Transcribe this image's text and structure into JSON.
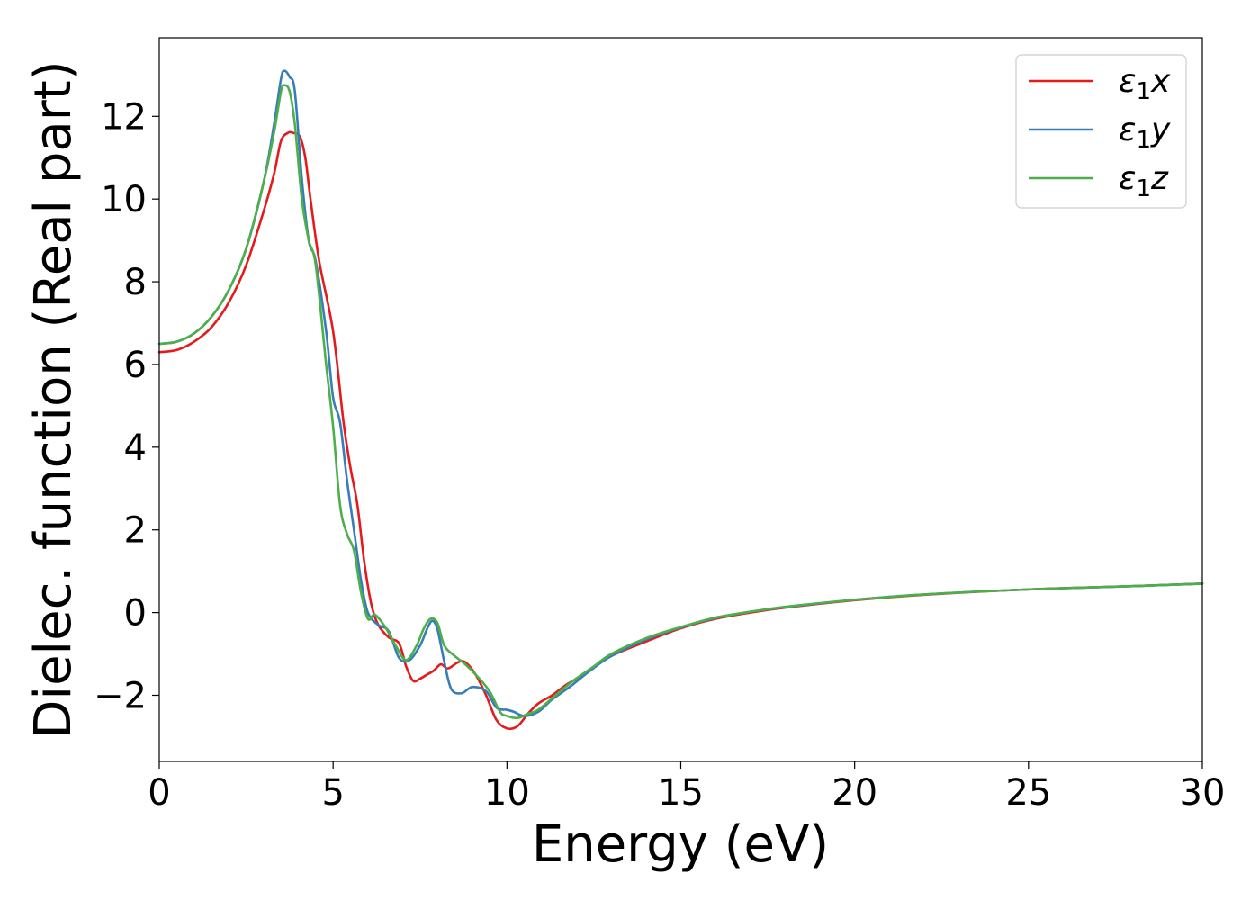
{
  "chart_data": {
    "type": "line",
    "xlabel": "Energy (eV)",
    "ylabel": "Dielec. function (Real part)",
    "xlim": [
      0,
      30
    ],
    "ylim": [
      -3.6,
      13.9
    ],
    "xticks": [
      0,
      5,
      10,
      15,
      20,
      25,
      30
    ],
    "xtick_labels": [
      "0",
      "5",
      "10",
      "15",
      "20",
      "25",
      "30"
    ],
    "yticks": [
      -2,
      0,
      2,
      4,
      6,
      8,
      10,
      12
    ],
    "ytick_labels": [
      "−2",
      "0",
      "2",
      "4",
      "6",
      "8",
      "10",
      "12"
    ],
    "grid": false,
    "legend_position": "top-right",
    "series": [
      {
        "name": "ε₁x",
        "legend": {
          "symbol": "ε",
          "sub": "1",
          "axis": "x"
        },
        "color": "#e41a1c",
        "points": [
          [
            0,
            6.3
          ],
          [
            0.5,
            6.35
          ],
          [
            1,
            6.55
          ],
          [
            1.5,
            6.9
          ],
          [
            2,
            7.5
          ],
          [
            2.5,
            8.4
          ],
          [
            3,
            9.7
          ],
          [
            3.3,
            10.6
          ],
          [
            3.5,
            11.4
          ],
          [
            3.7,
            11.6
          ],
          [
            3.85,
            11.6
          ],
          [
            4.05,
            11.5
          ],
          [
            4.2,
            11.0
          ],
          [
            4.35,
            10.0
          ],
          [
            4.6,
            8.5
          ],
          [
            5.0,
            6.8
          ],
          [
            5.3,
            4.6
          ],
          [
            5.5,
            3.5
          ],
          [
            5.7,
            2.6
          ],
          [
            5.9,
            1.2
          ],
          [
            6.1,
            0.2
          ],
          [
            6.3,
            -0.3
          ],
          [
            6.6,
            -0.6
          ],
          [
            6.9,
            -0.75
          ],
          [
            7.1,
            -1.3
          ],
          [
            7.3,
            -1.65
          ],
          [
            7.5,
            -1.6
          ],
          [
            7.7,
            -1.5
          ],
          [
            7.9,
            -1.4
          ],
          [
            8.1,
            -1.25
          ],
          [
            8.3,
            -1.35
          ],
          [
            8.6,
            -1.2
          ],
          [
            8.8,
            -1.2
          ],
          [
            9.1,
            -1.5
          ],
          [
            9.4,
            -2.0
          ],
          [
            9.7,
            -2.6
          ],
          [
            10.0,
            -2.8
          ],
          [
            10.3,
            -2.75
          ],
          [
            10.6,
            -2.45
          ],
          [
            10.9,
            -2.2
          ],
          [
            11.3,
            -2.0
          ],
          [
            11.7,
            -1.75
          ],
          [
            12.2,
            -1.5
          ],
          [
            13,
            -1.05
          ],
          [
            14,
            -0.7
          ],
          [
            15,
            -0.38
          ],
          [
            16,
            -0.15
          ],
          [
            17,
            0.0
          ],
          [
            18,
            0.12
          ],
          [
            20,
            0.3
          ],
          [
            22,
            0.43
          ],
          [
            25,
            0.56
          ],
          [
            28,
            0.64
          ],
          [
            30,
            0.7
          ]
        ]
      },
      {
        "name": "ε₁y",
        "legend": {
          "symbol": "ε",
          "sub": "1",
          "axis": "y"
        },
        "color": "#377eb8",
        "points": [
          [
            0,
            6.5
          ],
          [
            0.5,
            6.55
          ],
          [
            1,
            6.75
          ],
          [
            1.5,
            7.15
          ],
          [
            2,
            7.8
          ],
          [
            2.5,
            8.8
          ],
          [
            3,
            10.4
          ],
          [
            3.3,
            11.8
          ],
          [
            3.5,
            12.9
          ],
          [
            3.6,
            13.1
          ],
          [
            3.75,
            12.95
          ],
          [
            3.9,
            12.6
          ],
          [
            4.1,
            10.5
          ],
          [
            4.3,
            9.0
          ],
          [
            4.5,
            8.5
          ],
          [
            4.8,
            6.8
          ],
          [
            5.0,
            5.2
          ],
          [
            5.2,
            4.6
          ],
          [
            5.4,
            3.2
          ],
          [
            5.6,
            2.0
          ],
          [
            5.8,
            0.8
          ],
          [
            6.0,
            0.0
          ],
          [
            6.3,
            -0.3
          ],
          [
            6.6,
            -0.45
          ],
          [
            6.9,
            -1.1
          ],
          [
            7.2,
            -1.15
          ],
          [
            7.5,
            -0.8
          ],
          [
            7.7,
            -0.4
          ],
          [
            7.85,
            -0.2
          ],
          [
            8.0,
            -0.4
          ],
          [
            8.2,
            -1.2
          ],
          [
            8.4,
            -1.85
          ],
          [
            8.7,
            -1.95
          ],
          [
            9.0,
            -1.8
          ],
          [
            9.4,
            -1.9
          ],
          [
            9.7,
            -2.3
          ],
          [
            10.0,
            -2.35
          ],
          [
            10.2,
            -2.4
          ],
          [
            10.5,
            -2.5
          ],
          [
            10.9,
            -2.4
          ],
          [
            11.3,
            -2.1
          ],
          [
            11.8,
            -1.8
          ],
          [
            12.4,
            -1.4
          ],
          [
            13,
            -1.05
          ],
          [
            14,
            -0.65
          ],
          [
            15,
            -0.36
          ],
          [
            16,
            -0.13
          ],
          [
            17,
            0.02
          ],
          [
            18,
            0.13
          ],
          [
            20,
            0.31
          ],
          [
            22,
            0.44
          ],
          [
            25,
            0.56
          ],
          [
            28,
            0.64
          ],
          [
            30,
            0.7
          ]
        ]
      },
      {
        "name": "ε₁z",
        "legend": {
          "symbol": "ε",
          "sub": "1",
          "axis": "z"
        },
        "color": "#4daf4a",
        "points": [
          [
            0,
            6.5
          ],
          [
            0.5,
            6.55
          ],
          [
            1,
            6.75
          ],
          [
            1.5,
            7.15
          ],
          [
            2,
            7.8
          ],
          [
            2.5,
            8.8
          ],
          [
            3,
            10.4
          ],
          [
            3.3,
            11.6
          ],
          [
            3.5,
            12.6
          ],
          [
            3.6,
            12.75
          ],
          [
            3.75,
            12.6
          ],
          [
            3.9,
            11.8
          ],
          [
            4.1,
            10.0
          ],
          [
            4.3,
            9.0
          ],
          [
            4.5,
            8.4
          ],
          [
            4.8,
            6.0
          ],
          [
            5.0,
            4.5
          ],
          [
            5.2,
            2.6
          ],
          [
            5.4,
            1.9
          ],
          [
            5.6,
            1.5
          ],
          [
            5.8,
            0.5
          ],
          [
            6.0,
            -0.15
          ],
          [
            6.2,
            -0.05
          ],
          [
            6.5,
            -0.35
          ],
          [
            6.8,
            -0.8
          ],
          [
            7.1,
            -1.15
          ],
          [
            7.4,
            -0.8
          ],
          [
            7.6,
            -0.4
          ],
          [
            7.8,
            -0.15
          ],
          [
            8.0,
            -0.25
          ],
          [
            8.2,
            -0.8
          ],
          [
            8.5,
            -1.05
          ],
          [
            8.8,
            -1.25
          ],
          [
            9.1,
            -1.5
          ],
          [
            9.5,
            -1.9
          ],
          [
            9.8,
            -2.4
          ],
          [
            10.0,
            -2.5
          ],
          [
            10.3,
            -2.55
          ],
          [
            10.6,
            -2.45
          ],
          [
            10.9,
            -2.35
          ],
          [
            11.4,
            -2.0
          ],
          [
            11.9,
            -1.65
          ],
          [
            12.5,
            -1.3
          ],
          [
            13,
            -1.0
          ],
          [
            14,
            -0.62
          ],
          [
            15,
            -0.35
          ],
          [
            16,
            -0.12
          ],
          [
            17,
            0.02
          ],
          [
            18,
            0.14
          ],
          [
            20,
            0.31
          ],
          [
            22,
            0.44
          ],
          [
            25,
            0.56
          ],
          [
            28,
            0.64
          ],
          [
            30,
            0.7
          ]
        ]
      }
    ]
  }
}
